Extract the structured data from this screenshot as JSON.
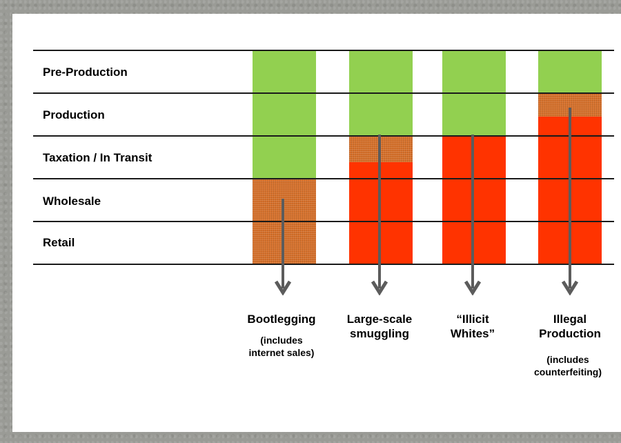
{
  "rows": [
    {
      "label": "Pre-Production"
    },
    {
      "label": "Production"
    },
    {
      "label": "Taxation / In Transit"
    },
    {
      "label": "Wholesale"
    },
    {
      "label": "Retail"
    }
  ],
  "columns": [
    {
      "title_line1": "Bootlegging",
      "title_line2": "",
      "note_line1": "(includes",
      "note_line2": "internet sales)"
    },
    {
      "title_line1": "Large-scale",
      "title_line2": "smuggling",
      "note_line1": "",
      "note_line2": ""
    },
    {
      "title_line1": "“Illicit",
      "title_line2": "Whites”",
      "note_line1": "",
      "note_line2": ""
    },
    {
      "title_line1": "Illegal",
      "title_line2": "Production",
      "note_line1": "(includes",
      "note_line2": "counterfeiting)"
    }
  ],
  "colors": {
    "legal": "#92d050",
    "transition": "#d6702a",
    "illicit": "#ff3300",
    "arrow": "#5c5c5c"
  }
}
